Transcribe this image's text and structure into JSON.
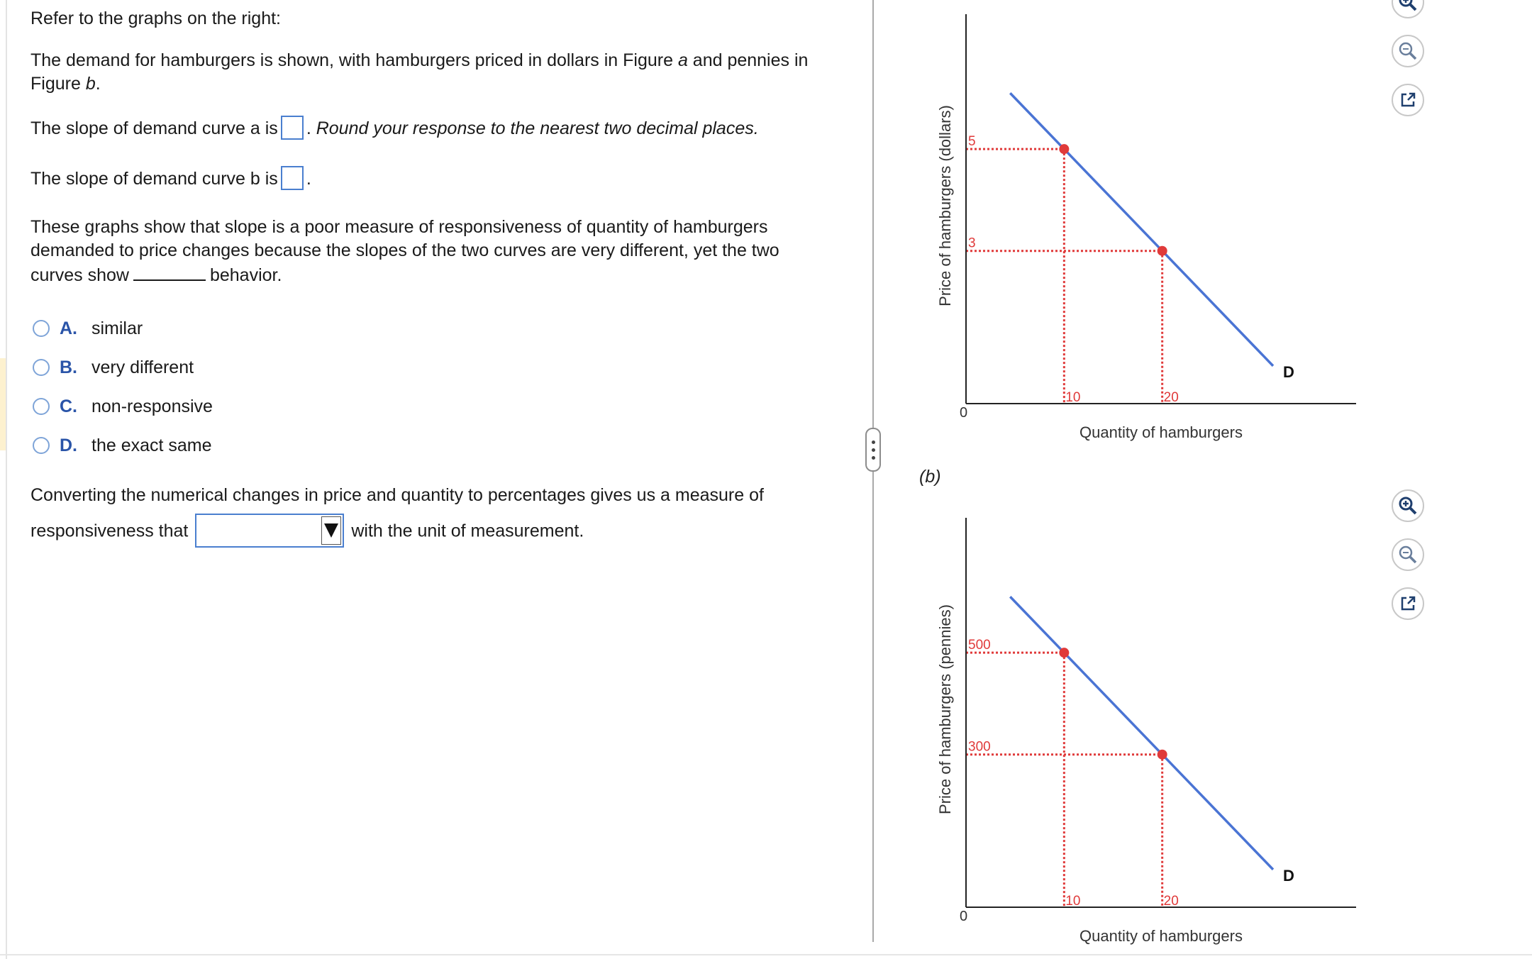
{
  "question": {
    "intro": "Refer to the graphs on the right:",
    "desc_1": "The demand for hamburgers is shown, with hamburgers priced in dollars in Figure ",
    "desc_a": "a",
    "desc_2": " and pennies in Figure ",
    "desc_b": "b",
    "desc_3": ".",
    "slope_a_label": "The slope of demand curve a is",
    "slope_a_hint": "Round your response to the nearest two decimal places.",
    "slope_b_label": "The slope of demand curve b is",
    "para_pre": "These graphs show that slope is a poor measure of responsiveness of quantity of hamburgers demanded to price changes because the slopes of the two curves are very different, yet the two curves show",
    "para_post": "behavior.",
    "options": [
      {
        "letter": "A.",
        "text": "similar"
      },
      {
        "letter": "B.",
        "text": "very different"
      },
      {
        "letter": "C.",
        "text": "non-responsive"
      },
      {
        "letter": "D.",
        "text": "the exact same"
      }
    ],
    "convert_line1": "Converting the numerical changes in price and quantity to percentages gives us a measure of",
    "convert_pre": "responsiveness that",
    "convert_post": "with the unit of measurement.",
    "dropdown_value": ""
  },
  "chart_data": [
    {
      "type": "line",
      "figure_label": "",
      "ylabel": "Price of hamburgers (dollars)",
      "xlabel": "Quantity of hamburgers",
      "origin_label": "0",
      "series": [
        {
          "name": "D",
          "points": [
            [
              10,
              5
            ],
            [
              20,
              3
            ]
          ]
        }
      ],
      "x_ticks": [
        "10",
        "20"
      ],
      "y_ticks": [
        "5",
        "3"
      ],
      "colors": {
        "curve": "#4a74d4",
        "points": "#e03a3a",
        "guides": "#e03a3a"
      }
    },
    {
      "type": "line",
      "figure_label": "(b)",
      "ylabel": "Price of hamburgers (pennies)",
      "xlabel": "Quantity of hamburgers",
      "origin_label": "0",
      "series": [
        {
          "name": "D",
          "points": [
            [
              10,
              500
            ],
            [
              20,
              300
            ]
          ]
        }
      ],
      "x_ticks": [
        "10",
        "20"
      ],
      "y_ticks": [
        "500",
        "300"
      ],
      "colors": {
        "curve": "#4a74d4",
        "points": "#e03a3a",
        "guides": "#e03a3a"
      }
    }
  ],
  "toolbar": {
    "chart_a": [
      "zoom-in-icon",
      "zoom-out-icon",
      "popout-icon"
    ],
    "chart_b": [
      "zoom-in-icon",
      "zoom-out-icon",
      "popout-icon"
    ]
  }
}
